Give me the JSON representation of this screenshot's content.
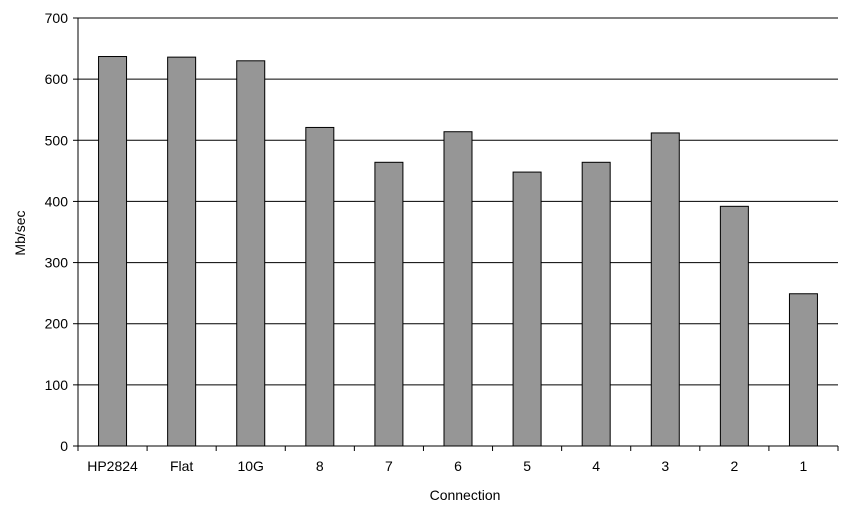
{
  "chart_data": {
    "type": "bar",
    "xlabel": "Connection",
    "ylabel": "Mb/sec",
    "categories": [
      "HP2824",
      "Flat",
      "10G",
      "8",
      "7",
      "6",
      "5",
      "4",
      "3",
      "2",
      "1"
    ],
    "values": [
      637,
      636,
      630,
      521,
      464,
      514,
      448,
      464,
      512,
      392,
      249
    ],
    "ylim": [
      0,
      700
    ],
    "yticks": [
      "0",
      "100",
      "200",
      "300",
      "400",
      "500",
      "600",
      "700"
    ],
    "grid": true,
    "bar_color": "#969696",
    "bar_edge_color": "#000000"
  }
}
